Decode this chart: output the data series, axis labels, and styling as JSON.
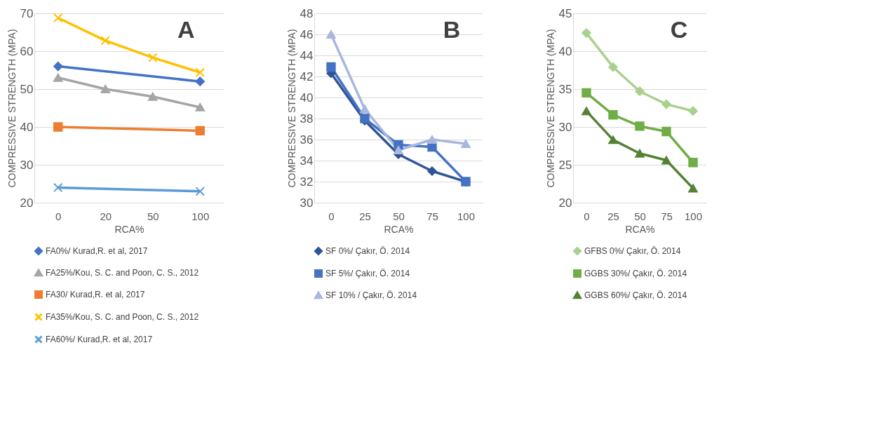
{
  "chart_data": [
    {
      "type": "line",
      "categories": [
        "0",
        "20",
        "50",
        "100"
      ],
      "xlabel": "RCA%",
      "ylabel": "COMPRESSIVE STRENGTH (MPA)",
      "ylim": [
        20,
        70
      ],
      "yticks": [
        20,
        30,
        40,
        50,
        60,
        70
      ],
      "grid": "y",
      "legend": "bottom",
      "annotations": [
        "A"
      ],
      "series": [
        {
          "name": "FA0%/ Kurad,R. et al, 2017",
          "color": "#4472c4",
          "marker": "diamond",
          "values": [
            56,
            null,
            null,
            52
          ]
        },
        {
          "name": "FA25%/Kou, S. C. and Poon, C. S., 2012",
          "color": "#a5a5a5",
          "marker": "triangle",
          "values": [
            53,
            50,
            48,
            45.2
          ]
        },
        {
          "name": "FA30/ Kurad,R. et al, 2017",
          "color": "#ed7d31",
          "marker": "square",
          "values": [
            40,
            null,
            null,
            39
          ]
        },
        {
          "name": "FA35%/Kou, S. C. and Poon, C. S., 2012",
          "color": "#ffc000",
          "marker": "cross",
          "values": [
            68.8,
            62.8,
            58.3,
            54.4
          ]
        },
        {
          "name": "FA60%/ Kurad,R. et al, 2017",
          "color": "#5b9bd5",
          "marker": "cross",
          "values": [
            24,
            null,
            null,
            23
          ]
        }
      ]
    },
    {
      "type": "line",
      "categories": [
        "0",
        "25",
        "50",
        "75",
        "100"
      ],
      "xlabel": "RCA%",
      "ylabel": "COMPRESSIVE STRENGTH (MPA)",
      "ylim": [
        30,
        48
      ],
      "yticks": [
        30,
        32,
        34,
        36,
        38,
        40,
        42,
        44,
        46,
        48
      ],
      "grid": "y",
      "legend": "bottom",
      "annotations": [
        "B"
      ],
      "series": [
        {
          "name": "SF 0%/ Çakır, Ö. 2014",
          "color": "#2f5597",
          "marker": "diamond",
          "values": [
            42.3,
            37.8,
            34.6,
            33,
            32
          ]
        },
        {
          "name": "SF 5%/ Çakır, Ö. 2014",
          "color": "#4472c4",
          "marker": "square",
          "values": [
            42.9,
            38,
            35.5,
            35.3,
            32
          ]
        },
        {
          "name": "SF 10% / Çakır, Ö. 2014",
          "color": "#a9b7de",
          "marker": "triangle",
          "values": [
            46,
            38.9,
            35,
            36,
            35.6
          ]
        }
      ]
    },
    {
      "type": "line",
      "categories": [
        "0",
        "25",
        "50",
        "75",
        "100"
      ],
      "xlabel": "RCA%",
      "ylabel": "COMPRESSIVE STRENGTH (MPA)",
      "ylim": [
        20,
        45
      ],
      "yticks": [
        20,
        25,
        30,
        35,
        40,
        45
      ],
      "grid": "y",
      "legend": "bottom",
      "annotations": [
        "C"
      ],
      "series": [
        {
          "name": "GFBS 0%/ Çakır, Ö. 2014",
          "color": "#a9d18e",
          "marker": "diamond",
          "values": [
            42.4,
            37.9,
            34.7,
            33,
            32.1
          ]
        },
        {
          "name": "GGBS 30%/ Çakır, Ö. 2014",
          "color": "#70ad47",
          "marker": "square",
          "values": [
            34.5,
            31.6,
            30.1,
            29.4,
            25.3
          ]
        },
        {
          "name": "GGBS 60%/ Çakır, Ö. 2014",
          "color": "#548235",
          "marker": "triangle",
          "values": [
            32.1,
            28.3,
            26.5,
            25.6,
            21.9
          ]
        }
      ]
    }
  ]
}
